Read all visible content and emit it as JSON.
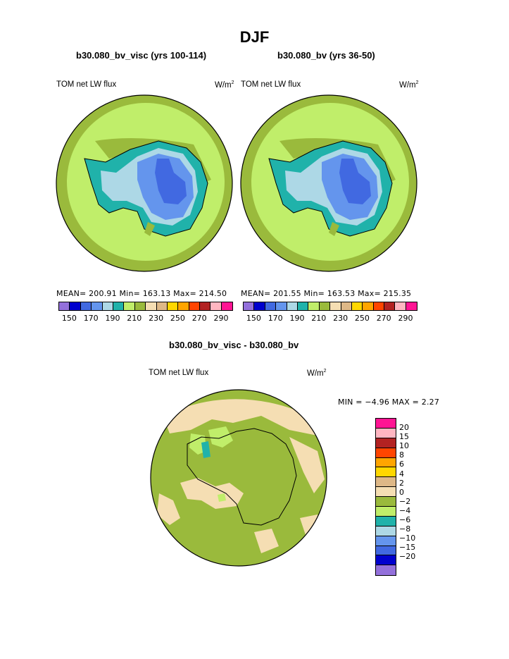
{
  "page_title": "DJF",
  "panel_left": {
    "case_title": "b30.080_bv_visc (yrs 100-114)",
    "field_label": "TOM net LW flux",
    "units_base": "W/m",
    "units_exp": "2",
    "stats": "MEAN= 200.91  Min= 163.13  Max= 214.50"
  },
  "panel_right": {
    "case_title": "b30.080_bv (yrs 36-50)",
    "field_label": "TOM net LW flux",
    "units_base": "W/m",
    "units_exp": "2",
    "stats": "MEAN= 201.55  Min= 163.53  Max= 215.35"
  },
  "panel_diff": {
    "case_title": "b30.080_bv_visc - b30.080_bv",
    "field_label": "TOM net LW flux",
    "units_base": "W/m",
    "units_exp": "2",
    "stats": "MIN =  −4.96 MAX =    2.27"
  },
  "abs_colorbar": {
    "colors": [
      "#9370db",
      "#0000cd",
      "#4169e1",
      "#6495ed",
      "#add8e6",
      "#20b2aa",
      "#c0ee6a",
      "#9aba3c",
      "#f5deb3",
      "#deb887",
      "#ffd700",
      "#ffa500",
      "#ff4500",
      "#b22222",
      "#ffb6c1",
      "#ff1493"
    ],
    "ticks": [
      "150",
      "170",
      "190",
      "210",
      "230",
      "250",
      "270",
      "290"
    ]
  },
  "diff_colorbar": {
    "colors": [
      "#ff1493",
      "#ffb6c1",
      "#b22222",
      "#ff4500",
      "#ffa500",
      "#ffd700",
      "#deb887",
      "#f5deb3",
      "#9aba3c",
      "#c0ee6a",
      "#20b2aa",
      "#add8e6",
      "#6495ed",
      "#4169e1",
      "#0000cd",
      "#9370db"
    ],
    "labels": [
      "20",
      "15",
      "10",
      "8",
      "6",
      "4",
      "2",
      "0",
      "−2",
      "−4",
      "−6",
      "−8",
      "−10",
      "−15",
      "−20"
    ]
  }
}
